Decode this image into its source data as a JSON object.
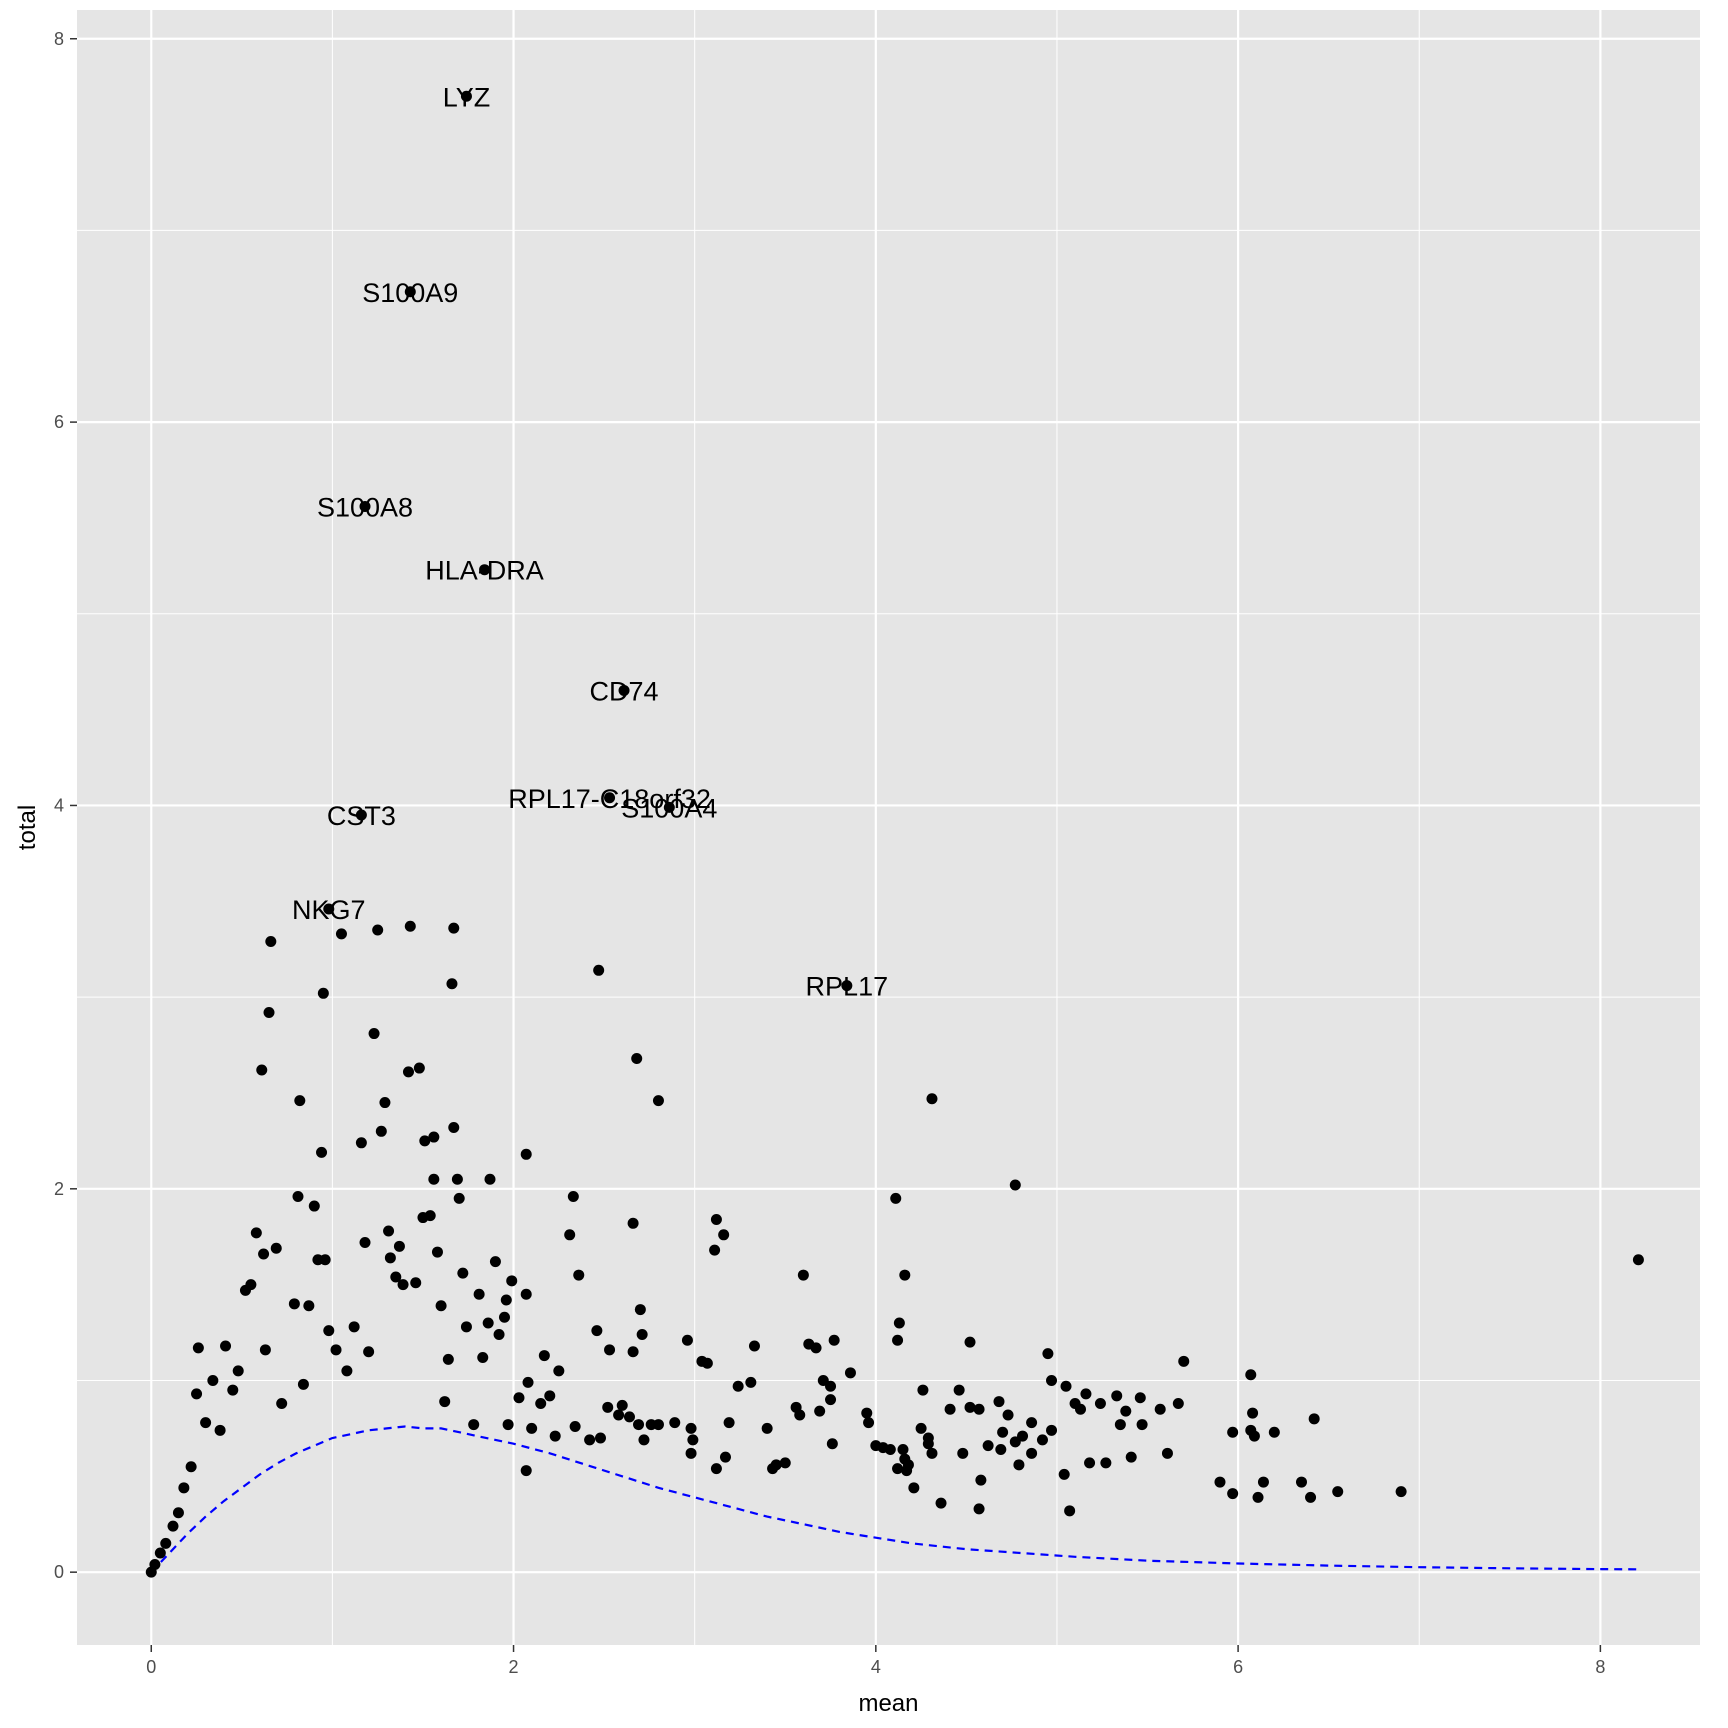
{
  "chart_data": {
    "type": "scatter",
    "xlabel": "mean",
    "ylabel": "total",
    "xlim": [
      -0.41,
      8.55
    ],
    "ylim": [
      -0.38,
      8.15
    ],
    "x_ticks": [
      0,
      2,
      4,
      6,
      8
    ],
    "y_ticks": [
      0,
      2,
      4,
      6,
      8
    ],
    "grid": true,
    "colors": {
      "panel_background": "#e5e5e5",
      "grid": "#ffffff",
      "points": "#000000",
      "trend_line": "#0000ff"
    },
    "labeled_points": [
      {
        "label": "LYZ",
        "x": 1.74,
        "y": 7.7
      },
      {
        "label": "S100A9",
        "x": 1.43,
        "y": 6.68
      },
      {
        "label": "S100A8",
        "x": 1.18,
        "y": 5.56
      },
      {
        "label": "HLA-DRA",
        "x": 1.84,
        "y": 5.23
      },
      {
        "label": "CD74",
        "x": 2.61,
        "y": 4.6
      },
      {
        "label": "RPL17-C18orf32",
        "x": 2.53,
        "y": 4.04
      },
      {
        "label": "S100A4",
        "x": 2.86,
        "y": 3.99
      },
      {
        "label": "CST3",
        "x": 1.16,
        "y": 3.95
      },
      {
        "label": "NKG7",
        "x": 0.98,
        "y": 3.46
      },
      {
        "label": "RPL17",
        "x": 3.84,
        "y": 3.06
      }
    ],
    "points": [
      [
        8.21,
        1.63
      ],
      [
        6.9,
        0.42
      ],
      [
        6.55,
        0.42
      ],
      [
        6.42,
        0.8
      ],
      [
        6.4,
        0.39
      ],
      [
        6.35,
        0.47
      ],
      [
        6.2,
        0.73
      ],
      [
        6.14,
        0.47
      ],
      [
        6.11,
        0.39
      ],
      [
        6.09,
        0.71
      ],
      [
        6.08,
        0.83
      ],
      [
        6.07,
        0.74
      ],
      [
        6.07,
        1.03
      ],
      [
        5.97,
        0.41
      ],
      [
        5.97,
        0.73
      ],
      [
        5.9,
        0.47
      ],
      [
        5.7,
        1.1
      ],
      [
        5.67,
        0.88
      ],
      [
        5.61,
        0.62
      ],
      [
        5.57,
        0.85
      ],
      [
        5.47,
        0.77
      ],
      [
        5.46,
        0.91
      ],
      [
        5.41,
        0.6
      ],
      [
        5.38,
        0.84
      ],
      [
        5.35,
        0.77
      ],
      [
        5.33,
        0.92
      ],
      [
        5.27,
        0.57
      ],
      [
        5.24,
        0.88
      ],
      [
        5.18,
        0.57
      ],
      [
        5.16,
        0.93
      ],
      [
        5.13,
        0.85
      ],
      [
        5.1,
        0.88
      ],
      [
        5.07,
        0.32
      ],
      [
        5.05,
        0.97
      ],
      [
        5.04,
        0.51
      ],
      [
        4.97,
        0.74
      ],
      [
        4.97,
        1.0
      ],
      [
        4.95,
        1.14
      ],
      [
        4.92,
        0.69
      ],
      [
        4.86,
        0.62
      ],
      [
        4.86,
        0.78
      ],
      [
        4.81,
        0.71
      ],
      [
        4.79,
        0.56
      ],
      [
        4.77,
        0.68
      ],
      [
        4.77,
        2.02
      ],
      [
        4.73,
        0.82
      ],
      [
        4.7,
        0.73
      ],
      [
        4.69,
        0.64
      ],
      [
        4.68,
        0.89
      ],
      [
        4.62,
        0.66
      ],
      [
        4.58,
        0.48
      ],
      [
        4.57,
        0.85
      ],
      [
        4.57,
        0.33
      ],
      [
        4.52,
        0.86
      ],
      [
        4.52,
        1.2
      ],
      [
        4.48,
        0.62
      ],
      [
        4.46,
        0.95
      ],
      [
        4.41,
        0.85
      ],
      [
        4.36,
        0.36
      ],
      [
        4.31,
        0.62
      ],
      [
        4.31,
        2.47
      ],
      [
        4.29,
        0.7
      ],
      [
        4.29,
        0.67
      ],
      [
        4.26,
        0.95
      ],
      [
        4.25,
        0.75
      ],
      [
        4.21,
        0.44
      ],
      [
        4.18,
        0.56
      ],
      [
        4.17,
        0.53
      ],
      [
        4.16,
        0.59
      ],
      [
        4.16,
        1.55
      ],
      [
        4.15,
        0.64
      ],
      [
        4.13,
        1.3
      ],
      [
        4.12,
        0.54
      ],
      [
        4.12,
        1.21
      ],
      [
        4.11,
        1.95
      ],
      [
        4.08,
        0.64
      ],
      [
        4.04,
        0.65
      ],
      [
        4.0,
        0.66
      ],
      [
        3.96,
        0.78
      ],
      [
        3.95,
        0.83
      ],
      [
        3.86,
        1.04
      ],
      [
        3.77,
        1.21
      ],
      [
        3.76,
        0.67
      ],
      [
        3.75,
        0.97
      ],
      [
        3.75,
        0.9
      ],
      [
        3.71,
        1.0
      ],
      [
        3.69,
        0.84
      ],
      [
        3.67,
        1.17
      ],
      [
        3.63,
        1.19
      ],
      [
        3.6,
        1.55
      ],
      [
        3.58,
        0.82
      ],
      [
        3.56,
        0.86
      ],
      [
        3.5,
        0.57
      ],
      [
        3.45,
        0.56
      ],
      [
        3.43,
        0.54
      ],
      [
        3.4,
        0.75
      ],
      [
        3.33,
        1.18
      ],
      [
        3.31,
        0.99
      ],
      [
        3.24,
        0.97
      ],
      [
        3.19,
        0.78
      ],
      [
        3.17,
        0.6
      ],
      [
        3.16,
        1.76
      ],
      [
        3.12,
        0.54
      ],
      [
        3.12,
        1.84
      ],
      [
        3.11,
        1.68
      ],
      [
        3.07,
        1.09
      ],
      [
        3.04,
        1.1
      ],
      [
        2.99,
        0.69
      ],
      [
        2.98,
        0.62
      ],
      [
        2.98,
        0.75
      ],
      [
        2.96,
        1.21
      ],
      [
        2.89,
        0.78
      ],
      [
        2.8,
        0.77
      ],
      [
        2.8,
        2.46
      ],
      [
        2.76,
        0.77
      ],
      [
        2.72,
        0.69
      ],
      [
        2.71,
        1.24
      ],
      [
        2.7,
        1.37
      ],
      [
        2.69,
        0.77
      ],
      [
        2.68,
        2.68
      ],
      [
        2.66,
        1.82
      ],
      [
        2.66,
        1.15
      ],
      [
        2.64,
        0.81
      ],
      [
        2.6,
        0.87
      ],
      [
        2.58,
        0.82
      ],
      [
        2.53,
        1.16
      ],
      [
        2.52,
        0.86
      ],
      [
        2.48,
        0.7
      ],
      [
        2.47,
        3.14
      ],
      [
        2.46,
        1.26
      ],
      [
        2.42,
        0.69
      ],
      [
        2.36,
        1.55
      ],
      [
        2.34,
        0.76
      ],
      [
        2.33,
        1.96
      ],
      [
        2.31,
        1.76
      ],
      [
        2.25,
        1.05
      ],
      [
        2.23,
        0.71
      ],
      [
        2.2,
        0.92
      ],
      [
        2.17,
        1.13
      ],
      [
        2.15,
        0.88
      ],
      [
        2.1,
        0.75
      ],
      [
        2.08,
        0.99
      ],
      [
        2.07,
        1.45
      ],
      [
        2.07,
        0.53
      ],
      [
        2.07,
        2.18
      ],
      [
        2.03,
        0.91
      ],
      [
        1.99,
        1.52
      ],
      [
        1.97,
        0.77
      ],
      [
        1.96,
        1.42
      ],
      [
        1.95,
        1.33
      ],
      [
        1.92,
        1.24
      ],
      [
        1.9,
        1.62
      ],
      [
        1.87,
        2.05
      ],
      [
        1.86,
        1.3
      ],
      [
        1.83,
        1.12
      ],
      [
        1.81,
        1.45
      ],
      [
        1.78,
        0.77
      ],
      [
        1.74,
        1.28
      ],
      [
        1.72,
        1.56
      ],
      [
        1.7,
        1.95
      ],
      [
        1.69,
        2.05
      ],
      [
        1.67,
        3.36
      ],
      [
        1.67,
        2.32
      ],
      [
        1.66,
        3.07
      ],
      [
        1.64,
        1.11
      ],
      [
        1.62,
        0.89
      ],
      [
        1.6,
        1.39
      ],
      [
        1.58,
        1.67
      ],
      [
        1.56,
        2.27
      ],
      [
        1.56,
        2.05
      ],
      [
        1.54,
        1.86
      ],
      [
        1.51,
        2.25
      ],
      [
        1.5,
        1.85
      ],
      [
        1.48,
        2.63
      ],
      [
        1.46,
        1.51
      ],
      [
        1.43,
        3.37
      ],
      [
        1.42,
        2.61
      ],
      [
        1.39,
        1.5
      ],
      [
        1.37,
        1.7
      ],
      [
        1.35,
        1.54
      ],
      [
        1.32,
        1.64
      ],
      [
        1.31,
        1.78
      ],
      [
        1.29,
        2.45
      ],
      [
        1.27,
        2.3
      ],
      [
        1.25,
        3.35
      ],
      [
        1.23,
        2.81
      ],
      [
        1.2,
        1.15
      ],
      [
        1.18,
        1.72
      ],
      [
        1.16,
        2.24
      ],
      [
        1.12,
        1.28
      ],
      [
        1.08,
        1.05
      ],
      [
        1.05,
        3.33
      ],
      [
        1.02,
        1.16
      ],
      [
        0.98,
        1.26
      ],
      [
        0.96,
        1.63
      ],
      [
        0.95,
        3.02
      ],
      [
        0.94,
        2.19
      ],
      [
        0.92,
        1.63
      ],
      [
        0.9,
        1.91
      ],
      [
        0.87,
        1.39
      ],
      [
        0.84,
        0.98
      ],
      [
        0.82,
        2.46
      ],
      [
        0.81,
        1.96
      ],
      [
        0.79,
        1.4
      ],
      [
        0.72,
        0.88
      ],
      [
        0.69,
        1.69
      ],
      [
        0.66,
        3.29
      ],
      [
        0.65,
        2.92
      ],
      [
        0.63,
        1.16
      ],
      [
        0.62,
        1.66
      ],
      [
        0.61,
        2.62
      ],
      [
        0.58,
        1.77
      ],
      [
        0.55,
        1.5
      ],
      [
        0.52,
        1.47
      ],
      [
        0.48,
        1.05
      ],
      [
        0.45,
        0.95
      ],
      [
        0.41,
        1.18
      ],
      [
        0.38,
        0.74
      ],
      [
        0.34,
        1.0
      ],
      [
        0.3,
        0.78
      ],
      [
        0.25,
        0.93
      ],
      [
        0.22,
        0.55
      ],
      [
        0.26,
        1.17
      ],
      [
        0.18,
        0.44
      ],
      [
        0.15,
        0.31
      ],
      [
        0.12,
        0.24
      ],
      [
        0.08,
        0.15
      ],
      [
        0.05,
        0.1
      ],
      [
        0.02,
        0.04
      ],
      [
        0.0,
        0.0
      ]
    ],
    "trend_line": [
      [
        0.0,
        0.0
      ],
      [
        0.1,
        0.1
      ],
      [
        0.2,
        0.2
      ],
      [
        0.3,
        0.29
      ],
      [
        0.4,
        0.37
      ],
      [
        0.5,
        0.44
      ],
      [
        0.6,
        0.51
      ],
      [
        0.7,
        0.57
      ],
      [
        0.8,
        0.62
      ],
      [
        0.9,
        0.66
      ],
      [
        1.0,
        0.7
      ],
      [
        1.1,
        0.72
      ],
      [
        1.2,
        0.74
      ],
      [
        1.3,
        0.75
      ],
      [
        1.4,
        0.76
      ],
      [
        1.5,
        0.75
      ],
      [
        1.6,
        0.75
      ],
      [
        1.7,
        0.73
      ],
      [
        1.8,
        0.71
      ],
      [
        2.0,
        0.67
      ],
      [
        2.2,
        0.62
      ],
      [
        2.4,
        0.56
      ],
      [
        2.6,
        0.5
      ],
      [
        2.8,
        0.44
      ],
      [
        3.0,
        0.39
      ],
      [
        3.2,
        0.34
      ],
      [
        3.4,
        0.29
      ],
      [
        3.6,
        0.25
      ],
      [
        3.8,
        0.21
      ],
      [
        4.0,
        0.18
      ],
      [
        4.2,
        0.15
      ],
      [
        4.5,
        0.12
      ],
      [
        4.8,
        0.1
      ],
      [
        5.1,
        0.08
      ],
      [
        5.5,
        0.06
      ],
      [
        6.0,
        0.045
      ],
      [
        6.5,
        0.034
      ],
      [
        7.0,
        0.026
      ],
      [
        7.5,
        0.02
      ],
      [
        8.0,
        0.016
      ],
      [
        8.2,
        0.015
      ]
    ]
  }
}
